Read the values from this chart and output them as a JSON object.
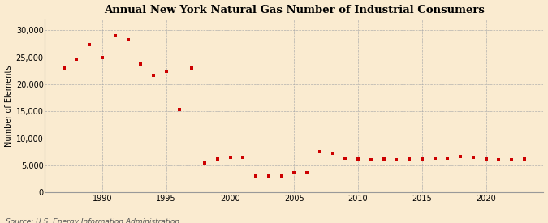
{
  "title": "Annual New York Natural Gas Number of Industrial Consumers",
  "ylabel": "Number of Elements",
  "source": "Source: U.S. Energy Information Administration",
  "background_color": "#faebd0",
  "plot_background_color": "#faebd0",
  "marker_color": "#cc0000",
  "years": [
    1987,
    1988,
    1989,
    1990,
    1991,
    1992,
    1993,
    1994,
    1995,
    1996,
    1997,
    1998,
    1999,
    2000,
    2001,
    2002,
    2003,
    2004,
    2005,
    2006,
    2007,
    2008,
    2009,
    2010,
    2011,
    2012,
    2013,
    2014,
    2015,
    2016,
    2017,
    2018,
    2019,
    2020,
    2021,
    2022,
    2023
  ],
  "values": [
    23000,
    24700,
    27300,
    25000,
    29000,
    28300,
    23800,
    21700,
    22400,
    15300,
    23000,
    5400,
    6200,
    6500,
    6500,
    3100,
    3100,
    3100,
    3600,
    3600,
    7500,
    7200,
    6300,
    6200,
    6100,
    6200,
    6100,
    6200,
    6200,
    6300,
    6300,
    6700,
    6500,
    6200,
    6100,
    6100,
    6200
  ],
  "ylim": [
    0,
    32000
  ],
  "yticks": [
    0,
    5000,
    10000,
    15000,
    20000,
    25000,
    30000
  ],
  "xlim": [
    1985.5,
    2024.5
  ],
  "xticks": [
    1990,
    1995,
    2000,
    2005,
    2010,
    2015,
    2020
  ]
}
